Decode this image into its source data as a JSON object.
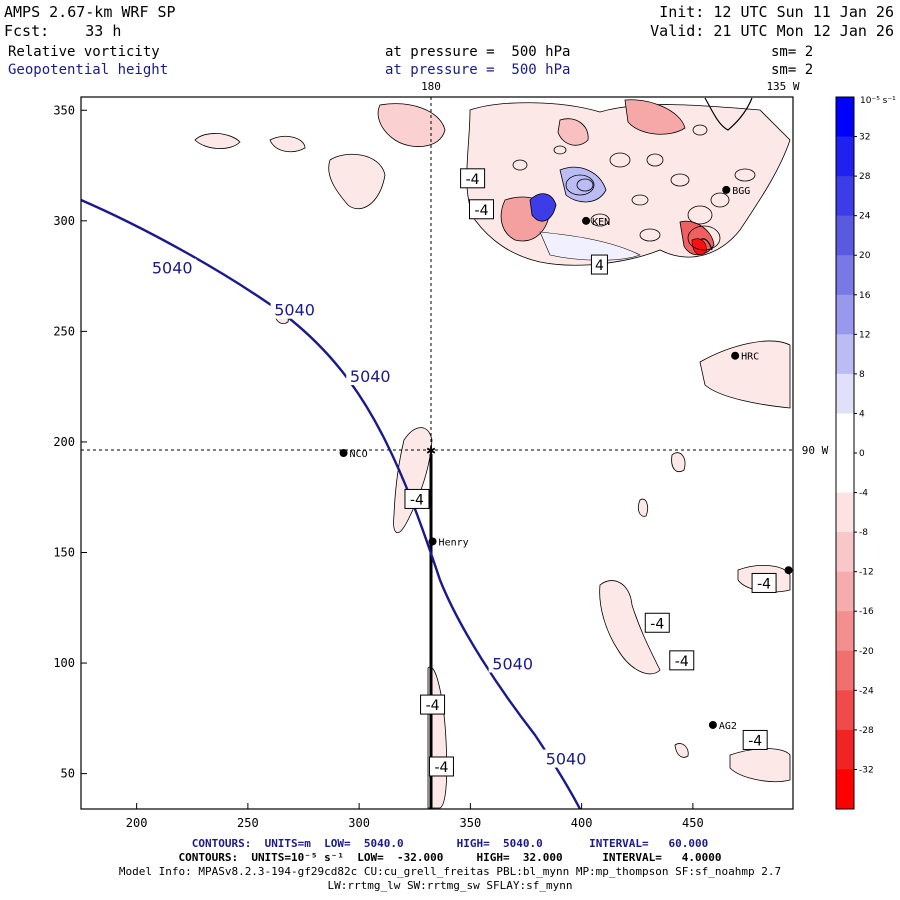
{
  "header": {
    "model": "AMPS 2.67-km WRF SP",
    "init": "Init: 12 UTC Sun 11 Jan 26",
    "fcst": "Fcst:    33 h",
    "valid": "Valid: 21 UTC Mon 12 Jan 26",
    "field1": "Relative vorticity",
    "field1_level": "at pressure =  500 hPa",
    "field1_sm": "sm= 2",
    "field2": "Geopotential height",
    "field2_level": "at pressure =  500 hPa",
    "field2_sm": "sm= 2"
  },
  "grid_labels": {
    "top_180": "180",
    "top_135w": "135 W",
    "right_90w": "90 W"
  },
  "axes": {
    "x_ticks": [
      "200",
      "250",
      "300",
      "350",
      "400",
      "450"
    ],
    "x_values": [
      200,
      250,
      300,
      350,
      400,
      450
    ],
    "y_ticks": [
      "50",
      "100",
      "150",
      "200",
      "250",
      "300",
      "350"
    ],
    "y_values": [
      50,
      100,
      150,
      200,
      250,
      300,
      350
    ],
    "xlim": [
      175,
      495
    ],
    "ylim": [
      34,
      356
    ]
  },
  "stations": [
    {
      "name": "NCO",
      "x": 293,
      "y": 195
    },
    {
      "name": "Henry",
      "x": 333,
      "y": 155
    },
    {
      "name": "BGG",
      "x": 465,
      "y": 314
    },
    {
      "name": "KEN",
      "x": 402,
      "y": 300
    },
    {
      "name": "HRC",
      "x": 469,
      "y": 239
    },
    {
      "name": "AG2",
      "x": 459,
      "y": 72
    },
    {
      "name": "",
      "x": 493,
      "y": 142
    }
  ],
  "height_labels": [
    {
      "text": "5040",
      "x": 216,
      "y": 277
    },
    {
      "text": "5040",
      "x": 271,
      "y": 258
    },
    {
      "text": "5040",
      "x": 305,
      "y": 228
    },
    {
      "text": "5040",
      "x": 369,
      "y": 98
    },
    {
      "text": "5040",
      "x": 393,
      "y": 55
    }
  ],
  "contour_labels": [
    {
      "text": "-4",
      "x": 351,
      "y": 319
    },
    {
      "text": "-4",
      "x": 355,
      "y": 305
    },
    {
      "text": "4",
      "x": 408,
      "y": 280
    },
    {
      "text": "-4",
      "x": 326,
      "y": 174
    },
    {
      "text": "-4",
      "x": 434,
      "y": 118
    },
    {
      "text": "-4",
      "x": 445,
      "y": 101
    },
    {
      "text": "-4",
      "x": 333,
      "y": 81
    },
    {
      "text": "-4",
      "x": 337,
      "y": 53
    },
    {
      "text": "-4",
      "x": 482,
      "y": 136
    },
    {
      "text": "-4",
      "x": 478,
      "y": 65
    }
  ],
  "colorbar": {
    "unit": "10⁻⁵ s⁻¹",
    "labels": [
      "32",
      "28",
      "24",
      "20",
      "16",
      "12",
      "8",
      "4",
      "0",
      "-4",
      "-8",
      "-12",
      "-16",
      "-20",
      "-24",
      "-28",
      "-32"
    ],
    "colors": [
      "#0000ff",
      "#2020f0",
      "#3c3ce8",
      "#5a5ae0",
      "#7878e6",
      "#9898ee",
      "#bcbcf4",
      "#e0e0fa",
      "#ffffff",
      "#ffffff",
      "#fce2e2",
      "#f8c8c8",
      "#f6acac",
      "#f48f8f",
      "#f07070",
      "#f04a4a",
      "#f02424",
      "#ff0000"
    ]
  },
  "footer": {
    "line1": "CONTOURS:  UNITS=m  LOW=  5040.0        HIGH=  5040.0       INTERVAL=   60.000",
    "line2": "CONTOURS:  UNITS=10⁻⁵ s⁻¹  LOW=  -32.000     HIGH=  32.000      INTERVAL=   4.0000",
    "line3": "Model Info: MPASv8.2.3-194-gf29cd82c CU:cu_grell_freitas PBL:bl_mynn MP:mp_thompson SF:sf_noahmp 2.7",
    "line4": "LW:rrtmg_lw SW:rrtmg_sw SFLAY:sf_mynn"
  },
  "colors": {
    "height_contour": "#1a1a8c",
    "negative_fill": "#fbe0e0",
    "positive_fill": "#d8d8f8"
  }
}
